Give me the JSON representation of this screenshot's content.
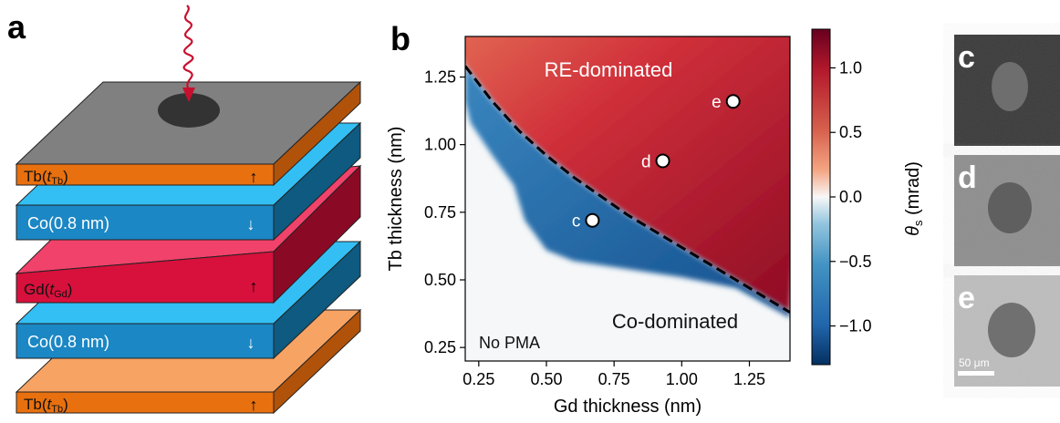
{
  "panel_a": {
    "letter": "a",
    "layers": [
      {
        "base": "Tb(",
        "italic": "t",
        "sub": "Tb",
        "close": ")",
        "arrow": "↑",
        "color": "#e8700f"
      },
      {
        "base": "Co(0.8 nm)",
        "italic": "",
        "sub": "",
        "close": "",
        "arrow": "↓",
        "color": "#1b87c4"
      },
      {
        "base": "Gd(",
        "italic": "t",
        "sub": "Gd",
        "close": ")",
        "arrow": "↑",
        "color": "#d8103c"
      },
      {
        "base": "Co(0.8 nm)",
        "italic": "",
        "sub": "",
        "close": "",
        "arrow": "↓",
        "color": "#1b87c4"
      },
      {
        "base": "Tb(",
        "italic": "t",
        "sub": "Tb",
        "close": ")",
        "arrow": "↑",
        "color": "#e8700f"
      }
    ]
  },
  "panel_b": {
    "letter": "b",
    "region_top": "RE-dominated",
    "region_bottom": "Co-dominated",
    "region_corner": "No PMA",
    "colorbar": {
      "label_symbol": "θ",
      "label_sub": "s",
      "label_unit": " (mrad)",
      "ticks": [
        "1.0",
        "0.5",
        "0.0",
        "−0.5",
        "−1.0"
      ]
    }
  },
  "chart_data": {
    "type": "heatmap",
    "xlabel": "Gd thickness (nm)",
    "ylabel": "Tb thickness (nm)",
    "xlim": [
      0.2,
      1.4
    ],
    "ylim": [
      0.2,
      1.4
    ],
    "xticks": [
      "0.25",
      "0.50",
      "0.75",
      "1.00",
      "1.25"
    ],
    "yticks": [
      "0.25",
      "0.50",
      "0.75",
      "1.00",
      "1.25"
    ],
    "colorbar_range": [
      -1.3,
      1.3
    ],
    "colormap": "RdBu_r",
    "boundary_curve": [
      [
        0.2,
        1.29
      ],
      [
        0.3,
        1.16
      ],
      [
        0.4,
        1.05
      ],
      [
        0.5,
        0.96
      ],
      [
        0.6,
        0.88
      ],
      [
        0.7,
        0.81
      ],
      [
        0.8,
        0.74
      ],
      [
        0.9,
        0.68
      ],
      [
        1.0,
        0.62
      ],
      [
        1.1,
        0.56
      ],
      [
        1.2,
        0.5
      ],
      [
        1.3,
        0.44
      ],
      [
        1.4,
        0.38
      ]
    ],
    "points": [
      {
        "label": "c",
        "x": 0.67,
        "y": 0.72
      },
      {
        "label": "d",
        "x": 0.93,
        "y": 0.94
      },
      {
        "label": "e",
        "x": 1.19,
        "y": 1.16
      }
    ]
  },
  "panel_images": [
    {
      "letter": "c",
      "scale_label": ""
    },
    {
      "letter": "d",
      "scale_label": ""
    },
    {
      "letter": "e",
      "scale_label": "50 μm"
    }
  ]
}
